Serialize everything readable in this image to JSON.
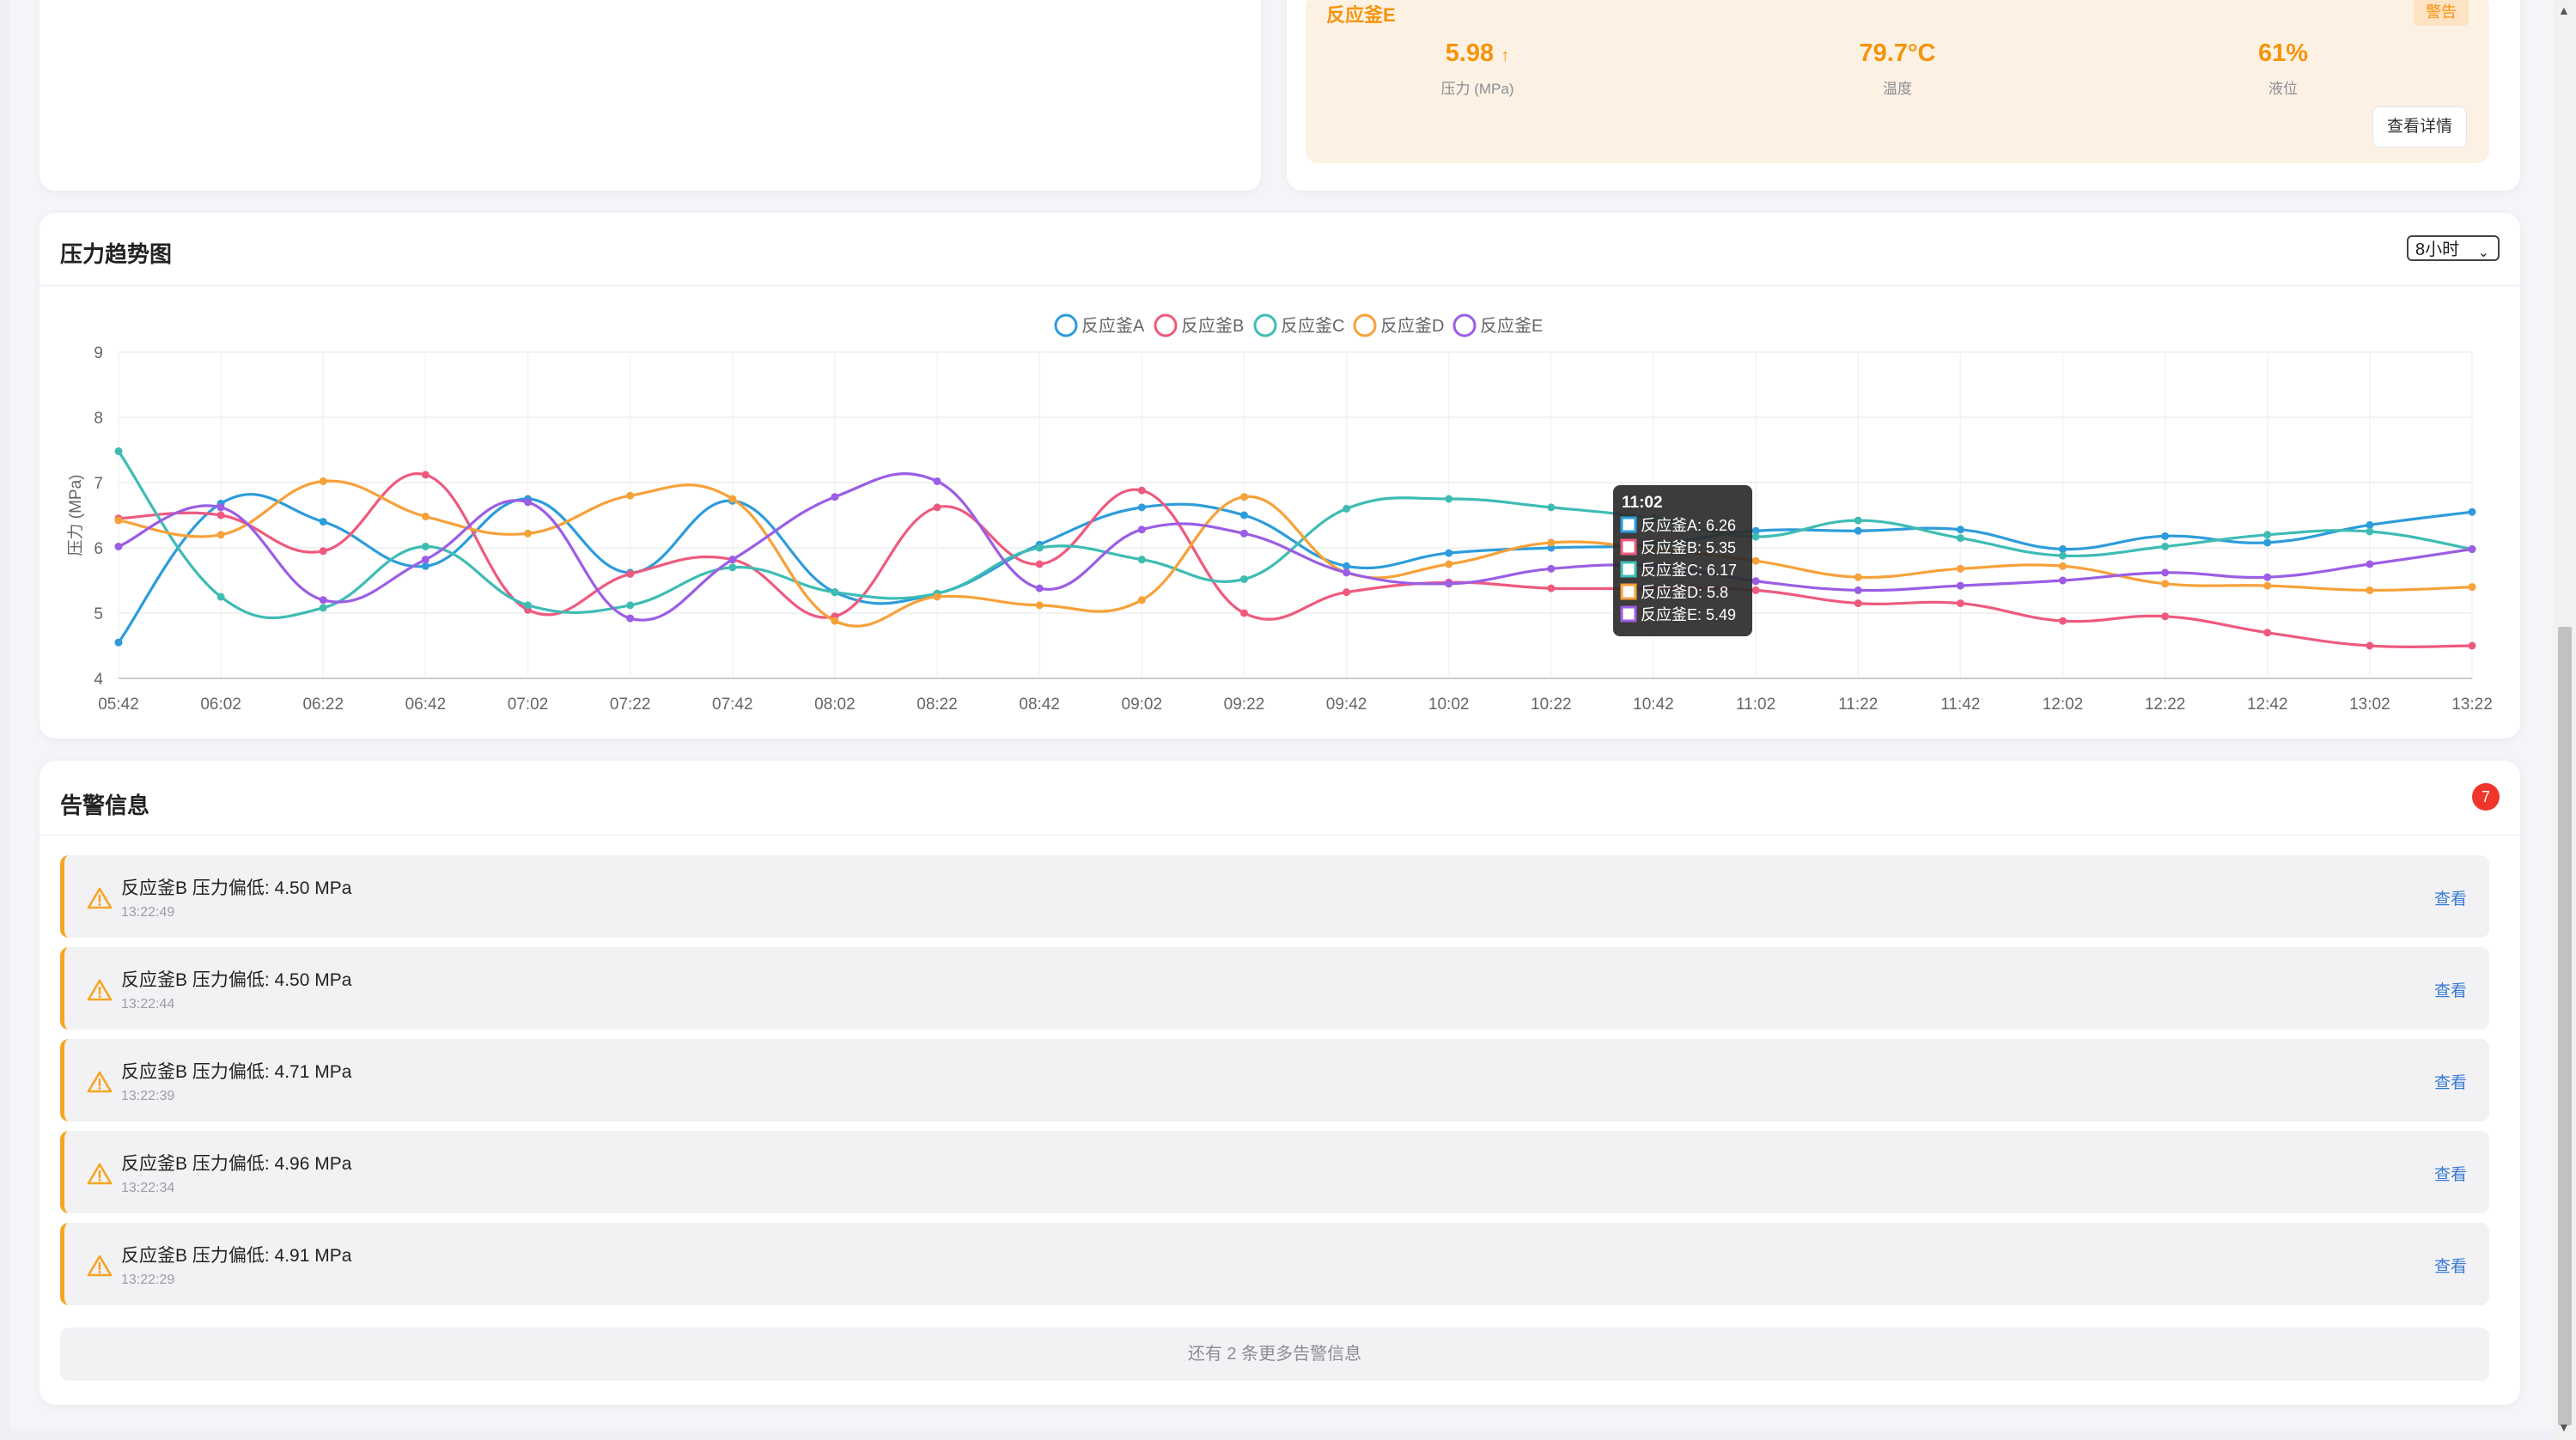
{
  "reactor_card": {
    "name": "反应釜E",
    "status_badge": "警告",
    "pressure_value": "5.98",
    "pressure_trend": "↑",
    "pressure_label": "压力 (MPa)",
    "temperature_value": "79.7°C",
    "temperature_label": "温度",
    "level_value": "61%",
    "level_label": "液位",
    "detail_button": "查看详情"
  },
  "pressure_chart_card": {
    "title": "压力趋势图",
    "range_selected": "8小时"
  },
  "chart_data": {
    "type": "line",
    "ylabel": "压力 (MPa)",
    "ylim": [
      4,
      9
    ],
    "y_ticks": [
      4,
      5,
      6,
      7,
      8,
      9
    ],
    "x": [
      "05:42",
      "06:02",
      "06:22",
      "06:42",
      "07:02",
      "07:22",
      "07:42",
      "08:02",
      "08:22",
      "08:42",
      "09:02",
      "09:22",
      "09:42",
      "10:02",
      "10:22",
      "10:42",
      "11:02",
      "11:22",
      "11:42",
      "12:02",
      "12:22",
      "12:42",
      "13:02",
      "13:22"
    ],
    "series": [
      {
        "name": "反应釜A",
        "color": "#2d9cdb",
        "values": [
          4.55,
          6.68,
          6.4,
          5.72,
          6.75,
          5.62,
          6.72,
          5.32,
          5.3,
          6.05,
          6.62,
          6.5,
          5.72,
          5.92,
          6.0,
          6.05,
          6.26,
          6.26,
          6.28,
          5.98,
          6.18,
          6.08,
          6.35,
          6.55
        ]
      },
      {
        "name": "反应釜B",
        "color": "#ee5a7e",
        "values": [
          6.45,
          6.5,
          5.95,
          7.12,
          5.05,
          5.6,
          5.82,
          4.95,
          6.62,
          5.75,
          6.88,
          5.0,
          5.32,
          5.47,
          5.38,
          5.38,
          5.35,
          5.15,
          5.15,
          4.88,
          4.95,
          4.7,
          4.5,
          4.5
        ]
      },
      {
        "name": "反应釜C",
        "color": "#3ebcb4",
        "values": [
          7.48,
          5.25,
          5.08,
          6.02,
          5.12,
          5.12,
          5.7,
          5.32,
          5.3,
          6.0,
          5.82,
          5.52,
          6.6,
          6.75,
          6.62,
          6.45,
          6.17,
          6.42,
          6.15,
          5.88,
          6.02,
          6.2,
          6.25,
          5.98
        ]
      },
      {
        "name": "反应釜D",
        "color": "#f7a13a",
        "values": [
          6.42,
          6.2,
          7.02,
          6.48,
          6.22,
          6.8,
          6.75,
          4.88,
          5.25,
          5.12,
          5.2,
          6.78,
          5.62,
          5.75,
          6.08,
          5.98,
          5.8,
          5.55,
          5.68,
          5.72,
          5.45,
          5.42,
          5.35,
          5.4
        ]
      },
      {
        "name": "反应釜E",
        "color": "#9b5de5",
        "values": [
          6.02,
          6.62,
          5.2,
          5.82,
          6.7,
          4.92,
          5.82,
          6.78,
          7.02,
          5.38,
          6.28,
          6.22,
          5.62,
          5.45,
          5.68,
          5.72,
          5.49,
          5.35,
          5.42,
          5.5,
          5.62,
          5.55,
          5.75,
          5.98
        ]
      }
    ],
    "grid": true,
    "legend": "top-center",
    "tooltip": {
      "title": "11:02",
      "lines": [
        "反应釜A: 6.26",
        "反应釜B: 5.35",
        "反应釜C: 6.17",
        "反应釜D: 5.8",
        "反应釜E: 5.49"
      ]
    }
  },
  "alerts_card": {
    "title": "告警信息",
    "count": "7",
    "items": [
      {
        "text": "反应釜B 压力偏低: 4.50 MPa",
        "time": "13:22:49",
        "action": "查看"
      },
      {
        "text": "反应釜B 压力偏低: 4.50 MPa",
        "time": "13:22:44",
        "action": "查看"
      },
      {
        "text": "反应釜B 压力偏低: 4.71 MPa",
        "time": "13:22:39",
        "action": "查看"
      },
      {
        "text": "反应釜B 压力偏低: 4.96 MPa",
        "time": "13:22:34",
        "action": "查看"
      },
      {
        "text": "反应釜B 压力偏低: 4.91 MPa",
        "time": "13:22:29",
        "action": "查看"
      }
    ],
    "more_text": "还有 2 条更多告警信息"
  },
  "colors": {
    "accent_warning": "#f5940c",
    "alert_border": "#f5a623",
    "badge_red": "#f0362a",
    "link_blue": "#3a7bd5"
  }
}
